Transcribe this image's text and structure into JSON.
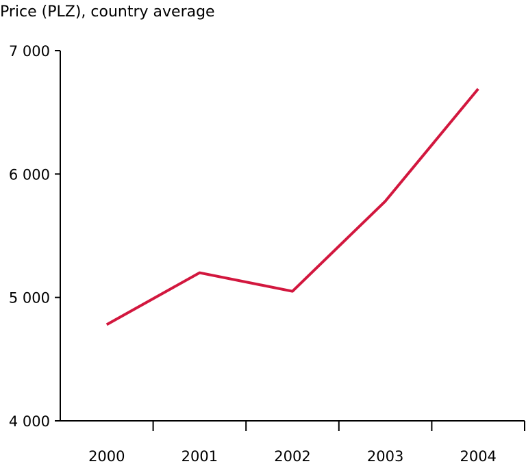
{
  "chart_data": {
    "type": "line",
    "ylabel": "Price (PLZ), country average",
    "xlabel": "",
    "categories": [
      "2000",
      "2001",
      "2002",
      "2003",
      "2004"
    ],
    "series": [
      {
        "values": [
          4780,
          5200,
          5050,
          5780,
          6690
        ]
      }
    ],
    "ylim": [
      4000,
      7000
    ],
    "yticks": [
      4000,
      5000,
      6000,
      7000
    ],
    "ytick_labels": [
      "4 000",
      "5 000",
      "6 000",
      "7 000"
    ],
    "grid": false,
    "colors": {
      "series": "#d2173e",
      "axis": "#000000"
    }
  }
}
